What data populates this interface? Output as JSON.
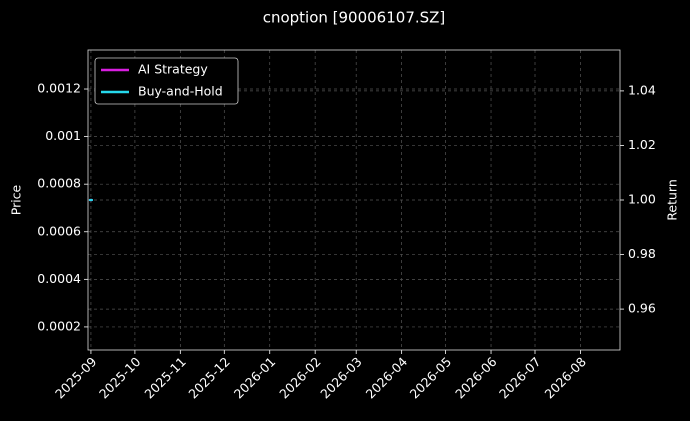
{
  "chart_data": {
    "type": "line",
    "title": "cnoption [90006107.SZ]",
    "ylabel": "Price",
    "y2label": "Return",
    "x": [
      "2025-09"
    ],
    "xlim": [
      "2025-08-30",
      "2026-08-28"
    ],
    "xticks": [
      "2025-09",
      "2025-10",
      "2025-11",
      "2025-12",
      "2026-01",
      "2026-02",
      "2026-03",
      "2026-04",
      "2026-05",
      "2026-06",
      "2026-07",
      "2026-08"
    ],
    "ylim": [
      0.000103,
      0.001364
    ],
    "yticks": [
      0.0002,
      0.0004,
      0.0006,
      0.0008,
      0.001,
      {
        "value": 0.0012,
        "label": "0.0012"
      }
    ],
    "y2lim": [
      0.945,
      1.055
    ],
    "y2ticks": [
      0.96,
      0.98,
      {
        "value": 1,
        "label": "1.00"
      },
      1.02,
      1.04
    ],
    "grid": true,
    "legend": "upper left",
    "series": [
      {
        "name": "AI Strategy",
        "color": "#d81ee0",
        "axis": "y2",
        "values": [
          1
        ]
      },
      {
        "name": "Buy-and-Hold",
        "color": "#26d9ec",
        "axis": "y2",
        "values": [
          1
        ]
      }
    ]
  }
}
